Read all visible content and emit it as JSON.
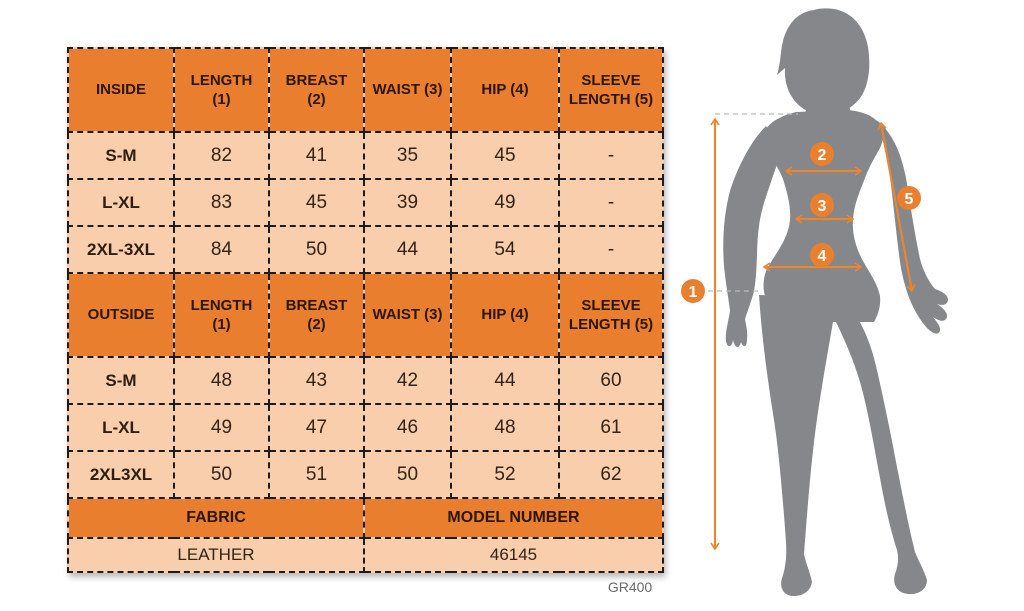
{
  "page": {
    "code": "GR400"
  },
  "colors": {
    "header_orange": "#E87E2E",
    "row_peach": "#F8CEAC",
    "accent_orange": "#E8822F",
    "body_gray": "#85878B",
    "leader_gray": "#BBBBBB",
    "border_black": "#1C1C1C"
  },
  "table": {
    "sections": [
      {
        "label": "INSIDE",
        "columns": [
          "LENGTH (1)",
          "BREAST (2)",
          "WAIST (3)",
          "HIP (4)",
          "SLEEVE LENGTH (5)"
        ],
        "rows": [
          {
            "size": "S-M",
            "values": [
              "82",
              "41",
              "35",
              "45",
              "-"
            ]
          },
          {
            "size": "L-XL",
            "values": [
              "83",
              "45",
              "39",
              "49",
              "-"
            ]
          },
          {
            "size": "2XL-3XL",
            "values": [
              "84",
              "50",
              "44",
              "54",
              "-"
            ]
          }
        ]
      },
      {
        "label": "OUTSIDE",
        "columns": [
          "LENGTH (1)",
          "BREAST (2)",
          "WAIST (3)",
          "HIP (4)",
          "SLEEVE LENGTH (5)"
        ],
        "rows": [
          {
            "size": "S-M",
            "values": [
              "48",
              "43",
              "42",
              "44",
              "60"
            ]
          },
          {
            "size": "L-XL",
            "values": [
              "49",
              "47",
              "46",
              "48",
              "61"
            ]
          },
          {
            "size": "2XL3XL",
            "values": [
              "50",
              "51",
              "50",
              "52",
              "62"
            ]
          }
        ]
      }
    ],
    "footer": {
      "fabric_label": "FABRIC",
      "fabric_value": "LEATHER",
      "model_label": "MODEL NUMBER",
      "model_value": "46145"
    }
  },
  "diagram": {
    "markers": [
      "1",
      "2",
      "3",
      "4",
      "5"
    ]
  }
}
